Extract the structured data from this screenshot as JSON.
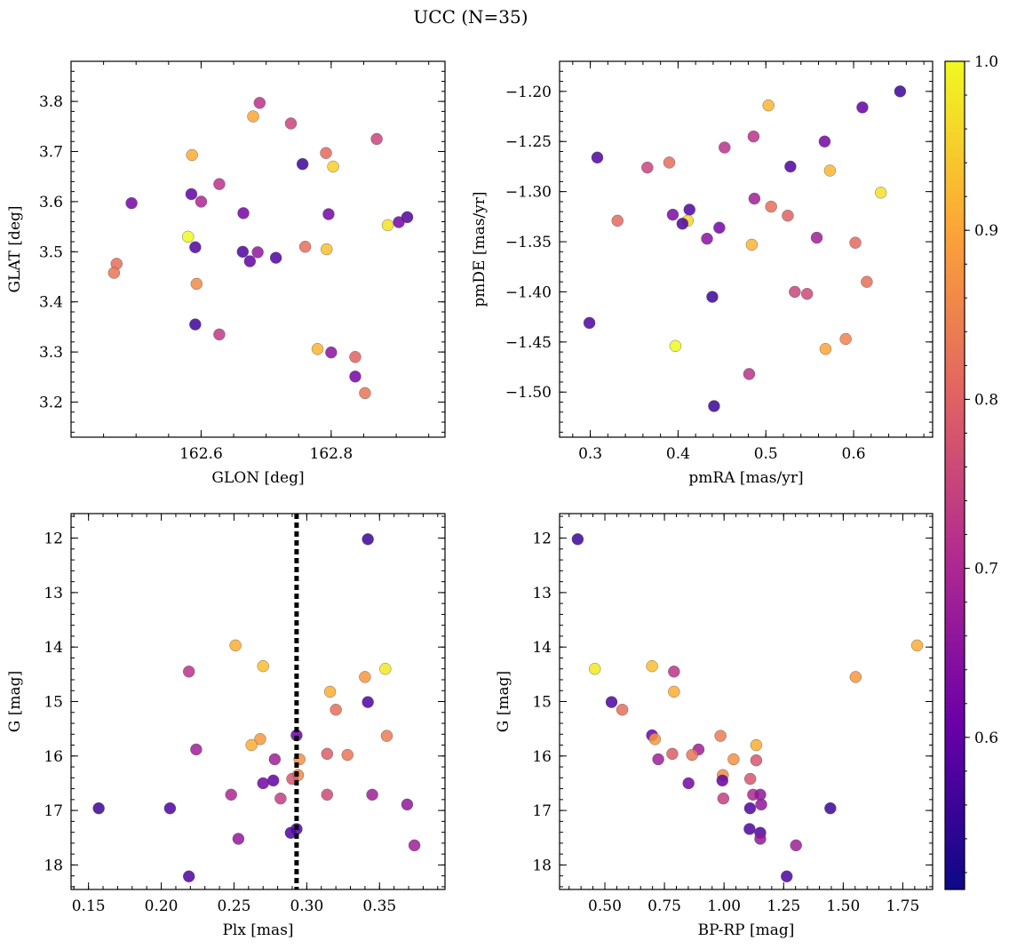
{
  "figure": {
    "title": "UCC (N=35)"
  },
  "colorbar": {
    "min": 0.51,
    "max": 1.0,
    "ticks": [
      0.6,
      0.7,
      0.8,
      0.9,
      1.0
    ],
    "tick_labels": [
      "0.6",
      "0.7",
      "0.8",
      "0.9",
      "1.0"
    ],
    "colormap": "plasma",
    "colormap_stops": [
      "#0d0887",
      "#6a00a8",
      "#b12a90",
      "#e16462",
      "#fca636",
      "#f0f921"
    ]
  },
  "chart_data": [
    {
      "type": "scatter",
      "id": "glon-glat",
      "xlabel": "GLON [deg]",
      "ylabel": "GLAT [deg]",
      "xlim": [
        162.4,
        162.975
      ],
      "ylim": [
        3.13,
        3.88
      ],
      "xticks": [
        162.6,
        162.8
      ],
      "xtick_labels": [
        "162.6",
        "162.8"
      ],
      "yticks": [
        3.2,
        3.3,
        3.4,
        3.5,
        3.6,
        3.7,
        3.8
      ],
      "ytick_labels": [
        "3.2",
        "3.3",
        "3.4",
        "3.5",
        "3.6",
        "3.7",
        "3.8"
      ],
      "x_minor_step": 0.05,
      "y_minor_step": 0.02,
      "points": [
        {
          "x": 162.69,
          "y": 3.797,
          "c": 0.72
        },
        {
          "x": 162.68,
          "y": 3.77,
          "c": 0.9
        },
        {
          "x": 162.738,
          "y": 3.756,
          "c": 0.75
        },
        {
          "x": 162.87,
          "y": 3.725,
          "c": 0.75
        },
        {
          "x": 162.586,
          "y": 3.693,
          "c": 0.91
        },
        {
          "x": 162.792,
          "y": 3.697,
          "c": 0.81
        },
        {
          "x": 162.756,
          "y": 3.675,
          "c": 0.56
        },
        {
          "x": 162.803,
          "y": 3.67,
          "c": 0.95
        },
        {
          "x": 162.628,
          "y": 3.635,
          "c": 0.72
        },
        {
          "x": 162.585,
          "y": 3.615,
          "c": 0.6
        },
        {
          "x": 162.6,
          "y": 3.6,
          "c": 0.7
        },
        {
          "x": 162.493,
          "y": 3.597,
          "c": 0.62
        },
        {
          "x": 162.665,
          "y": 3.577,
          "c": 0.62
        },
        {
          "x": 162.796,
          "y": 3.575,
          "c": 0.62
        },
        {
          "x": 162.917,
          "y": 3.569,
          "c": 0.58
        },
        {
          "x": 162.904,
          "y": 3.559,
          "c": 0.62
        },
        {
          "x": 162.887,
          "y": 3.553,
          "c": 0.97
        },
        {
          "x": 162.58,
          "y": 3.53,
          "c": 1.0
        },
        {
          "x": 162.591,
          "y": 3.509,
          "c": 0.58
        },
        {
          "x": 162.76,
          "y": 3.51,
          "c": 0.82
        },
        {
          "x": 162.793,
          "y": 3.505,
          "c": 0.93
        },
        {
          "x": 162.664,
          "y": 3.5,
          "c": 0.58
        },
        {
          "x": 162.687,
          "y": 3.499,
          "c": 0.66
        },
        {
          "x": 162.715,
          "y": 3.488,
          "c": 0.58
        },
        {
          "x": 162.675,
          "y": 3.481,
          "c": 0.6
        },
        {
          "x": 162.47,
          "y": 3.476,
          "c": 0.82
        },
        {
          "x": 162.466,
          "y": 3.458,
          "c": 0.83
        },
        {
          "x": 162.593,
          "y": 3.436,
          "c": 0.86
        },
        {
          "x": 162.591,
          "y": 3.355,
          "c": 0.56
        },
        {
          "x": 162.628,
          "y": 3.335,
          "c": 0.73
        },
        {
          "x": 162.779,
          "y": 3.306,
          "c": 0.92
        },
        {
          "x": 162.8,
          "y": 3.299,
          "c": 0.65
        },
        {
          "x": 162.837,
          "y": 3.29,
          "c": 0.8
        },
        {
          "x": 162.837,
          "y": 3.251,
          "c": 0.62
        },
        {
          "x": 162.852,
          "y": 3.218,
          "c": 0.83
        }
      ]
    },
    {
      "type": "scatter",
      "id": "pmra-pmde",
      "xlabel": "pmRA [mas/yr]",
      "ylabel": "pmDE [mas/yr]",
      "xlim": [
        0.265,
        0.69
      ],
      "ylim": [
        -1.545,
        -1.17
      ],
      "xticks": [
        0.3,
        0.4,
        0.5,
        0.6
      ],
      "xtick_labels": [
        "0.3",
        "0.4",
        "0.5",
        "0.6"
      ],
      "yticks": [
        -1.5,
        -1.45,
        -1.4,
        -1.35,
        -1.3,
        -1.25,
        -1.2
      ],
      "ytick_labels": [
        "−1.50",
        "−1.45",
        "−1.40",
        "−1.35",
        "−1.30",
        "−1.25",
        "−1.20"
      ],
      "x_minor_step": 0.02,
      "y_minor_step": 0.01,
      "points": [
        {
          "x": 0.653,
          "y": -1.2,
          "c": 0.56
        },
        {
          "x": 0.503,
          "y": -1.214,
          "c": 0.92
        },
        {
          "x": 0.61,
          "y": -1.216,
          "c": 0.6
        },
        {
          "x": 0.567,
          "y": -1.25,
          "c": 0.62
        },
        {
          "x": 0.486,
          "y": -1.245,
          "c": 0.72
        },
        {
          "x": 0.453,
          "y": -1.256,
          "c": 0.72
        },
        {
          "x": 0.308,
          "y": -1.266,
          "c": 0.58
        },
        {
          "x": 0.39,
          "y": -1.271,
          "c": 0.82
        },
        {
          "x": 0.365,
          "y": -1.276,
          "c": 0.75
        },
        {
          "x": 0.528,
          "y": -1.275,
          "c": 0.58
        },
        {
          "x": 0.573,
          "y": -1.279,
          "c": 0.92
        },
        {
          "x": 0.631,
          "y": -1.301,
          "c": 0.97
        },
        {
          "x": 0.487,
          "y": -1.307,
          "c": 0.68
        },
        {
          "x": 0.506,
          "y": -1.315,
          "c": 0.82
        },
        {
          "x": 0.413,
          "y": -1.318,
          "c": 0.58
        },
        {
          "x": 0.394,
          "y": -1.323,
          "c": 0.63
        },
        {
          "x": 0.525,
          "y": -1.324,
          "c": 0.8
        },
        {
          "x": 0.331,
          "y": -1.329,
          "c": 0.81
        },
        {
          "x": 0.411,
          "y": -1.329,
          "c": 0.96
        },
        {
          "x": 0.405,
          "y": -1.332,
          "c": 0.58
        },
        {
          "x": 0.447,
          "y": -1.336,
          "c": 0.62
        },
        {
          "x": 0.433,
          "y": -1.347,
          "c": 0.65
        },
        {
          "x": 0.558,
          "y": -1.346,
          "c": 0.68
        },
        {
          "x": 0.602,
          "y": -1.351,
          "c": 0.81
        },
        {
          "x": 0.484,
          "y": -1.353,
          "c": 0.92
        },
        {
          "x": 0.615,
          "y": -1.39,
          "c": 0.82
        },
        {
          "x": 0.533,
          "y": -1.4,
          "c": 0.75
        },
        {
          "x": 0.547,
          "y": -1.402,
          "c": 0.76
        },
        {
          "x": 0.439,
          "y": -1.405,
          "c": 0.56
        },
        {
          "x": 0.299,
          "y": -1.431,
          "c": 0.58
        },
        {
          "x": 0.591,
          "y": -1.447,
          "c": 0.85
        },
        {
          "x": 0.397,
          "y": -1.454,
          "c": 1.0
        },
        {
          "x": 0.568,
          "y": -1.457,
          "c": 0.9
        },
        {
          "x": 0.481,
          "y": -1.482,
          "c": 0.72
        },
        {
          "x": 0.441,
          "y": -1.514,
          "c": 0.56
        }
      ]
    },
    {
      "type": "scatter",
      "id": "plx-g",
      "xlabel": "Plx [mas]",
      "ylabel": "G [mag]",
      "xlim": [
        0.138,
        0.395
      ],
      "ylim": [
        18.45,
        11.55
      ],
      "y_inverted": true,
      "xticks": [
        0.15,
        0.2,
        0.25,
        0.3,
        0.35
      ],
      "xtick_labels": [
        "0.15",
        "0.20",
        "0.25",
        "0.30",
        "0.35"
      ],
      "yticks": [
        12,
        13,
        14,
        15,
        16,
        17,
        18
      ],
      "ytick_labels": [
        "12",
        "13",
        "14",
        "15",
        "16",
        "17",
        "18"
      ],
      "x_minor_step": 0.01,
      "y_minor_step": 0.2,
      "vline": {
        "x": 0.293,
        "style": "dotted",
        "color": "#000000"
      },
      "points": [
        {
          "x": 0.342,
          "y": 12.02,
          "c": 0.56
        },
        {
          "x": 0.251,
          "y": 13.97,
          "c": 0.91
        },
        {
          "x": 0.27,
          "y": 14.35,
          "c": 0.93
        },
        {
          "x": 0.354,
          "y": 14.4,
          "c": 0.98
        },
        {
          "x": 0.219,
          "y": 14.45,
          "c": 0.72
        },
        {
          "x": 0.34,
          "y": 14.55,
          "c": 0.88
        },
        {
          "x": 0.316,
          "y": 14.82,
          "c": 0.91
        },
        {
          "x": 0.342,
          "y": 15.01,
          "c": 0.58
        },
        {
          "x": 0.32,
          "y": 15.15,
          "c": 0.82
        },
        {
          "x": 0.355,
          "y": 15.63,
          "c": 0.84
        },
        {
          "x": 0.293,
          "y": 15.62,
          "c": 0.61
        },
        {
          "x": 0.268,
          "y": 15.69,
          "c": 0.88
        },
        {
          "x": 0.262,
          "y": 15.8,
          "c": 0.91
        },
        {
          "x": 0.224,
          "y": 15.88,
          "c": 0.68
        },
        {
          "x": 0.314,
          "y": 15.96,
          "c": 0.79
        },
        {
          "x": 0.328,
          "y": 15.98,
          "c": 0.83
        },
        {
          "x": 0.295,
          "y": 16.06,
          "c": 0.87
        },
        {
          "x": 0.278,
          "y": 16.06,
          "c": 0.68
        },
        {
          "x": 0.294,
          "y": 16.35,
          "c": 0.86
        },
        {
          "x": 0.29,
          "y": 16.42,
          "c": 0.78
        },
        {
          "x": 0.277,
          "y": 16.45,
          "c": 0.6
        },
        {
          "x": 0.27,
          "y": 16.5,
          "c": 0.62
        },
        {
          "x": 0.248,
          "y": 16.71,
          "c": 0.7
        },
        {
          "x": 0.314,
          "y": 16.71,
          "c": 0.76
        },
        {
          "x": 0.345,
          "y": 16.71,
          "c": 0.68
        },
        {
          "x": 0.282,
          "y": 16.78,
          "c": 0.74
        },
        {
          "x": 0.369,
          "y": 16.89,
          "c": 0.66
        },
        {
          "x": 0.157,
          "y": 16.96,
          "c": 0.56
        },
        {
          "x": 0.206,
          "y": 16.96,
          "c": 0.58
        },
        {
          "x": 0.293,
          "y": 17.34,
          "c": 0.58
        },
        {
          "x": 0.289,
          "y": 17.41,
          "c": 0.58
        },
        {
          "x": 0.253,
          "y": 17.52,
          "c": 0.66
        },
        {
          "x": 0.374,
          "y": 17.64,
          "c": 0.68
        },
        {
          "x": 0.219,
          "y": 18.21,
          "c": 0.58
        }
      ]
    },
    {
      "type": "scatter",
      "id": "bprp-g",
      "xlabel": "BP-RP [mag]",
      "ylabel": "G [mag]",
      "xlim": [
        0.31,
        1.875
      ],
      "ylim": [
        18.45,
        11.55
      ],
      "y_inverted": true,
      "xticks": [
        0.5,
        0.75,
        1.0,
        1.25,
        1.5,
        1.75
      ],
      "xtick_labels": [
        "0.50",
        "0.75",
        "1.00",
        "1.25",
        "1.50",
        "1.75"
      ],
      "yticks": [
        12,
        13,
        14,
        15,
        16,
        17,
        18
      ],
      "ytick_labels": [
        "12",
        "13",
        "14",
        "15",
        "16",
        "17",
        "18"
      ],
      "x_minor_step": 0.05,
      "y_minor_step": 0.2,
      "points": [
        {
          "x": 0.386,
          "y": 12.02,
          "c": 0.56
        },
        {
          "x": 1.81,
          "y": 13.97,
          "c": 0.91
        },
        {
          "x": 0.698,
          "y": 14.35,
          "c": 0.93
        },
        {
          "x": 0.458,
          "y": 14.4,
          "c": 0.98
        },
        {
          "x": 0.79,
          "y": 14.45,
          "c": 0.72
        },
        {
          "x": 1.552,
          "y": 14.55,
          "c": 0.88
        },
        {
          "x": 0.79,
          "y": 14.82,
          "c": 0.91
        },
        {
          "x": 0.528,
          "y": 15.01,
          "c": 0.58
        },
        {
          "x": 0.573,
          "y": 15.15,
          "c": 0.82
        },
        {
          "x": 0.985,
          "y": 15.63,
          "c": 0.84
        },
        {
          "x": 0.698,
          "y": 15.62,
          "c": 0.61
        },
        {
          "x": 0.71,
          "y": 15.69,
          "c": 0.88
        },
        {
          "x": 1.135,
          "y": 15.8,
          "c": 0.91
        },
        {
          "x": 0.893,
          "y": 15.88,
          "c": 0.68
        },
        {
          "x": 0.783,
          "y": 15.96,
          "c": 0.79
        },
        {
          "x": 0.866,
          "y": 15.98,
          "c": 0.83
        },
        {
          "x": 1.04,
          "y": 16.06,
          "c": 0.87
        },
        {
          "x": 0.724,
          "y": 16.06,
          "c": 0.68
        },
        {
          "x": 1.135,
          "y": 16.08,
          "c": 0.78
        },
        {
          "x": 0.995,
          "y": 16.35,
          "c": 0.86
        },
        {
          "x": 1.11,
          "y": 16.42,
          "c": 0.78
        },
        {
          "x": 0.993,
          "y": 16.45,
          "c": 0.6
        },
        {
          "x": 0.851,
          "y": 16.5,
          "c": 0.62
        },
        {
          "x": 1.122,
          "y": 16.71,
          "c": 0.7
        },
        {
          "x": 1.152,
          "y": 16.71,
          "c": 0.66
        },
        {
          "x": 0.997,
          "y": 16.78,
          "c": 0.74
        },
        {
          "x": 1.156,
          "y": 16.89,
          "c": 0.66
        },
        {
          "x": 1.109,
          "y": 16.96,
          "c": 0.58
        },
        {
          "x": 1.446,
          "y": 16.96,
          "c": 0.56
        },
        {
          "x": 1.107,
          "y": 17.34,
          "c": 0.58
        },
        {
          "x": 1.152,
          "y": 17.41,
          "c": 0.58
        },
        {
          "x": 1.152,
          "y": 17.52,
          "c": 0.66
        },
        {
          "x": 1.302,
          "y": 17.64,
          "c": 0.68
        },
        {
          "x": 1.263,
          "y": 18.21,
          "c": 0.58
        }
      ]
    }
  ]
}
